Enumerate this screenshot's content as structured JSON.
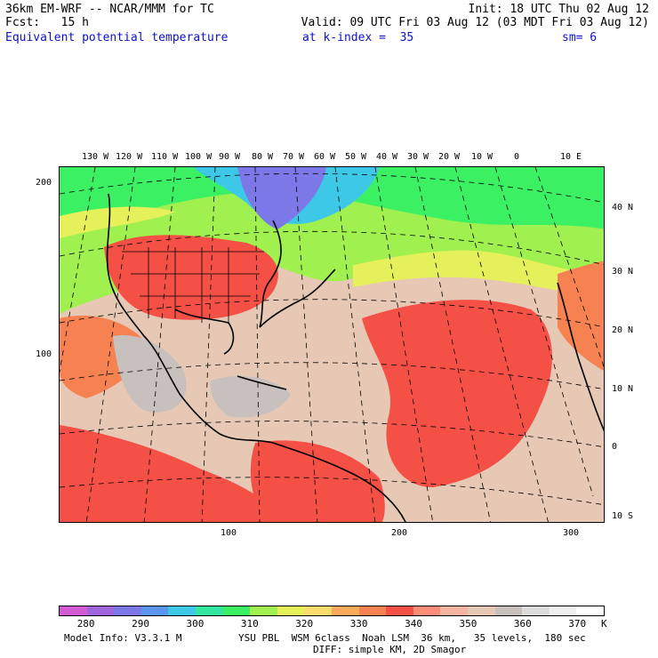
{
  "header": {
    "model": "36km EM-WRF -- NCAR/MMM for TC",
    "init": "Init: 18 UTC Thu 02 Aug 12",
    "fcst": "Fcst:   15 h",
    "valid": "Valid: 09 UTC Fri 03 Aug 12 (03 MDT Fri 03 Aug 12)",
    "field": "Equivalent potential temperature",
    "level": "at k-index =  35",
    "smooth": "sm= 6"
  },
  "map": {
    "top_lon_labels": [
      "130 W",
      "120 W",
      "110 W",
      "100 W",
      "90 W",
      "80 W",
      "70 W",
      "60 W",
      "50 W",
      "40 W",
      "30 W",
      "20 W",
      "10 W",
      "0",
      "10 E"
    ],
    "right_lat_labels": [
      "40 N",
      "30 N",
      "20 N",
      "10 N",
      "0",
      "10 S"
    ],
    "left_grid_labels": [
      "200",
      "100"
    ],
    "bottom_grid_labels": [
      "100",
      "200",
      "300"
    ]
  },
  "colorbar": {
    "labels": [
      "280",
      "290",
      "300",
      "310",
      "320",
      "330",
      "340",
      "350",
      "360",
      "370"
    ],
    "unit": "K",
    "colors": [
      "#d25ad2",
      "#a064dc",
      "#7c78e8",
      "#5a96f0",
      "#3cc8e6",
      "#32e6a0",
      "#3cf064",
      "#a0f050",
      "#e6f05a",
      "#fadc6e",
      "#faaa5a",
      "#f58250",
      "#f55046",
      "#fa8c78",
      "#f5b4a0",
      "#e6c8b4",
      "#c8c0bc",
      "#dcdcdc",
      "#f0f0f0",
      "#ffffff"
    ]
  },
  "footer": {
    "model_info": "Model Info: V3.3.1 M",
    "physics": "YSU PBL  WSM 6class  Noah LSM  36 km,   35 levels,  180 sec",
    "diffusion": "DIFF: simple KM, 2D Smagor"
  }
}
